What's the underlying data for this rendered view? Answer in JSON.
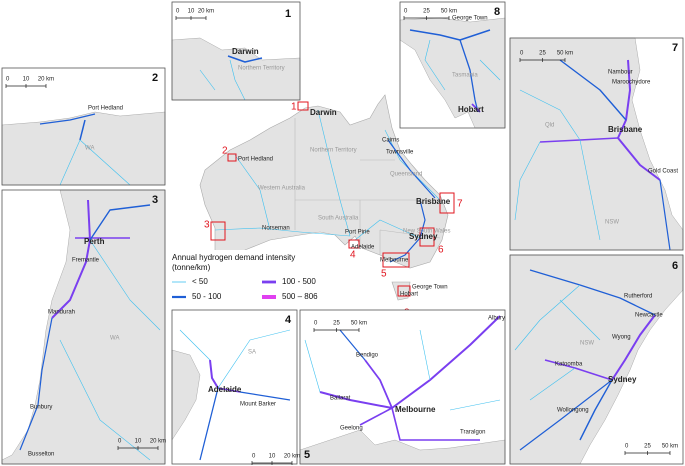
{
  "panels": [
    {
      "number": "1",
      "scale": [
        "0",
        "10",
        "20 km"
      ],
      "places": [
        "Darwin",
        "Northern Territory"
      ]
    },
    {
      "number": "2",
      "scale": [
        "0",
        "10",
        "20 km"
      ],
      "places": [
        "Port Hedland",
        "WA"
      ]
    },
    {
      "number": "3",
      "scale": [
        "0",
        "10",
        "20 km"
      ],
      "places": [
        "Perth",
        "Fremantle",
        "Mandurah",
        "WA",
        "Bunbury",
        "Busselton"
      ]
    },
    {
      "number": "4",
      "scale": [
        "0",
        "10",
        "20 km"
      ],
      "places": [
        "SA",
        "Adelaide",
        "Mount Barker"
      ]
    },
    {
      "number": "5",
      "scale": [
        "0",
        "25",
        "50 km"
      ],
      "places": [
        "Albury",
        "Bendigo",
        "Ballarat",
        "Melbourne",
        "Geelong",
        "Traralgon"
      ]
    },
    {
      "number": "6",
      "scale": [
        "0",
        "25",
        "50 km"
      ],
      "places": [
        "Rutherford",
        "Newcastle",
        "NSW",
        "Wyong",
        "Katoomba",
        "Sydney",
        "Wollongong"
      ]
    },
    {
      "number": "7",
      "scale": [
        "0",
        "25",
        "50 km"
      ],
      "places": [
        "Nambour",
        "Maroochydore",
        "Qld",
        "Brisbane",
        "Gold Coast",
        "NSW"
      ]
    },
    {
      "number": "8",
      "scale": [
        "0",
        "25",
        "50 km"
      ],
      "places": [
        "George Town",
        "Tasmania",
        "Hobart"
      ]
    }
  ],
  "main_map": {
    "places": [
      "Darwin",
      "Port Hedland",
      "Northern Territory",
      "Western Australia",
      "Queensland",
      "Cairns",
      "Townsville",
      "South Australia",
      "Norseman",
      "Port Pirie",
      "New South Wales",
      "Brisbane",
      "Sydney",
      "Adelaide",
      "Melbourne",
      "George Town",
      "Hobart"
    ],
    "box_numbers": [
      "1",
      "2",
      "3",
      "4",
      "5",
      "6",
      "7",
      "8"
    ]
  },
  "legend": {
    "title": "Annual hydrogen demand intensity",
    "unit": "(tonne/km)",
    "items": [
      {
        "label": "< 50",
        "color": "#3fc1f0"
      },
      {
        "label": "50 - 100",
        "color": "#1f5fd6"
      },
      {
        "label": "100 - 500",
        "color": "#7a3ff0"
      },
      {
        "label": "500 – 806",
        "color": "#e040f0"
      }
    ]
  }
}
